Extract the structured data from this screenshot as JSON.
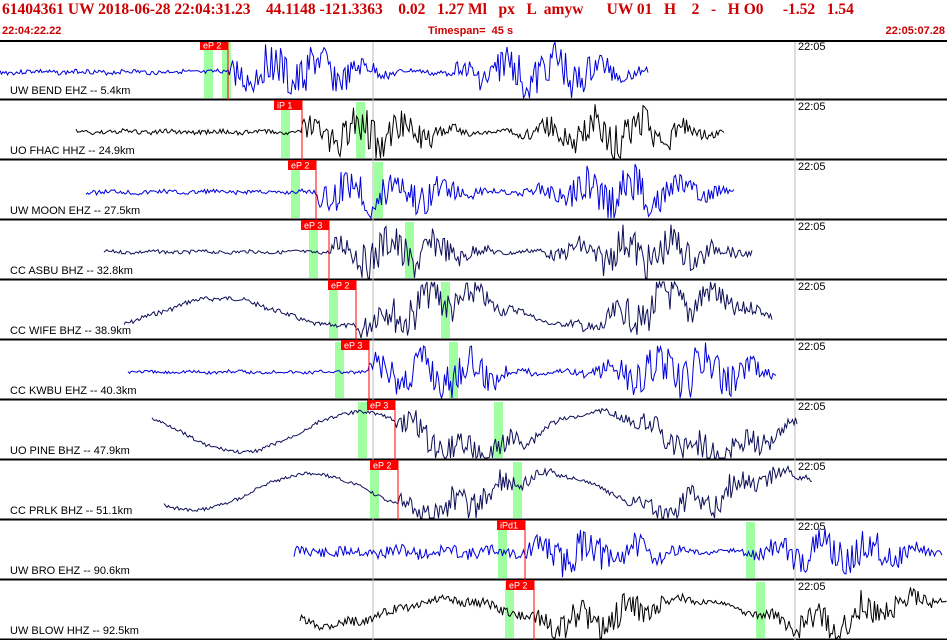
{
  "header": {
    "title": "61404361 UW 2018-06-28 22:04:31.23    44.1148 -121.3363    0.02   1.27 Ml   px   L  amyw      UW 01   H    2   -   H O0     -1.52   1.54",
    "start_time": "22:04:22.22",
    "timespan": "Timespan=  45 s",
    "end_time": "22:05:07.28"
  },
  "colors": {
    "accent": "#cc0000",
    "pick": "#ff0000",
    "window": "#a0ffa0",
    "trace_blue": "#0000dd",
    "trace_black": "#000000",
    "trace_navy": "#10105a"
  },
  "tracks": [
    {
      "label": "UW BEND EHZ -- 5.4km",
      "pick": "eP 2",
      "clock": "22:05",
      "trace_color": "#0000dd"
    },
    {
      "label": "UO FHAC HHZ -- 24.9km",
      "pick": "iP 1",
      "clock": "22:05",
      "trace_color": "#000000"
    },
    {
      "label": "UW MOON EHZ -- 27.5km",
      "pick": "eP 2",
      "clock": "22:05",
      "trace_color": "#0000dd"
    },
    {
      "label": "CC ASBU BHZ -- 32.8km",
      "pick": "eP 3",
      "clock": "22:05",
      "trace_color": "#10105a"
    },
    {
      "label": "CC WIFE BHZ -- 38.9km",
      "pick": "eP 2",
      "clock": "22:05",
      "trace_color": "#10105a"
    },
    {
      "label": "CC KWBU EHZ -- 40.3km",
      "pick": "eP 3",
      "clock": "22:05",
      "trace_color": "#0000dd"
    },
    {
      "label": "UO PINE BHZ -- 47.9km",
      "pick": "eP 3",
      "clock": "22:05",
      "trace_color": "#10105a"
    },
    {
      "label": "CC PRLK BHZ -- 51.1km",
      "pick": "eP 2",
      "clock": "22:05",
      "trace_color": "#10105a"
    },
    {
      "label": "UW BRO EHZ -- 90.6km",
      "pick": "iPd1",
      "clock": "22:05",
      "trace_color": "#0000dd"
    },
    {
      "label": "UW BLOW HHZ -- 92.5km",
      "pick": "eP 2",
      "clock": "22:05",
      "trace_color": "#000000"
    }
  ]
}
